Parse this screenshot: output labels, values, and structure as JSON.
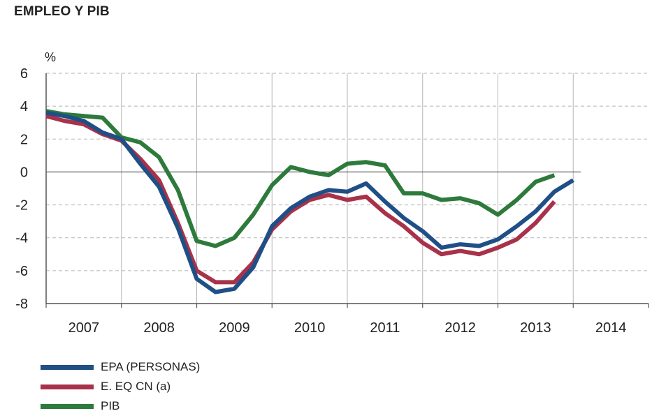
{
  "title": "EMPLEO Y PIB",
  "chart_data": {
    "type": "line",
    "title": "EMPLEO Y PIB",
    "ylabel": "%",
    "ylim": [
      -8,
      6
    ],
    "yticks": [
      6,
      4,
      2,
      0,
      -2,
      -4,
      -6,
      -8
    ],
    "xlim": [
      2007,
      2015
    ],
    "x_tick_labels": [
      "2007",
      "2008",
      "2009",
      "2010",
      "2011",
      "2012",
      "2013",
      "2014"
    ],
    "grid": true,
    "legend_position": "bottom-left",
    "series": [
      {
        "name": "EPA (PERSONAS)",
        "color": "#1f4f86",
        "x": [
          2007.0,
          2007.25,
          2007.5,
          2007.75,
          2008.0,
          2008.25,
          2008.5,
          2008.75,
          2009.0,
          2009.25,
          2009.5,
          2009.75,
          2010.0,
          2010.25,
          2010.5,
          2010.75,
          2011.0,
          2011.25,
          2011.5,
          2011.75,
          2012.0,
          2012.25,
          2012.5,
          2012.75,
          2013.0,
          2013.25,
          2013.5,
          2013.75,
          2014.0
        ],
        "values": [
          3.6,
          3.4,
          3.1,
          2.4,
          2.0,
          0.5,
          -0.9,
          -3.4,
          -6.5,
          -7.3,
          -7.1,
          -5.8,
          -3.3,
          -2.2,
          -1.5,
          -1.1,
          -1.2,
          -0.7,
          -1.8,
          -2.8,
          -3.6,
          -4.6,
          -4.4,
          -4.5,
          -4.1,
          -3.3,
          -2.4,
          -1.2,
          -0.5
        ]
      },
      {
        "name": "E. EQ CN (a)",
        "color": "#a8324a",
        "x": [
          2007.0,
          2007.25,
          2007.5,
          2007.75,
          2008.0,
          2008.25,
          2008.5,
          2008.75,
          2009.0,
          2009.25,
          2009.5,
          2009.75,
          2010.0,
          2010.25,
          2010.5,
          2010.75,
          2011.0,
          2011.25,
          2011.5,
          2011.75,
          2012.0,
          2012.25,
          2012.5,
          2012.75,
          2013.0,
          2013.25,
          2013.5,
          2013.75
        ],
        "values": [
          3.4,
          3.1,
          2.9,
          2.3,
          1.9,
          0.8,
          -0.5,
          -3.1,
          -6.0,
          -6.7,
          -6.7,
          -5.5,
          -3.5,
          -2.4,
          -1.7,
          -1.4,
          -1.7,
          -1.5,
          -2.5,
          -3.3,
          -4.3,
          -5.0,
          -4.8,
          -5.0,
          -4.6,
          -4.1,
          -3.1,
          -1.8
        ]
      },
      {
        "name": "PIB",
        "color": "#2e7a3c",
        "x": [
          2007.0,
          2007.25,
          2007.5,
          2007.75,
          2008.0,
          2008.25,
          2008.5,
          2008.75,
          2009.0,
          2009.25,
          2009.5,
          2009.75,
          2010.0,
          2010.25,
          2010.5,
          2010.75,
          2011.0,
          2011.25,
          2011.5,
          2011.75,
          2012.0,
          2012.25,
          2012.5,
          2012.75,
          2013.0,
          2013.25,
          2013.5,
          2013.75
        ],
        "values": [
          3.7,
          3.5,
          3.4,
          3.3,
          2.1,
          1.8,
          0.9,
          -1.1,
          -4.2,
          -4.5,
          -4.0,
          -2.6,
          -0.8,
          0.3,
          0.0,
          -0.2,
          0.5,
          0.6,
          0.4,
          -1.3,
          -1.3,
          -1.7,
          -1.6,
          -1.9,
          -2.6,
          -1.7,
          -0.6,
          -0.2
        ]
      }
    ]
  }
}
